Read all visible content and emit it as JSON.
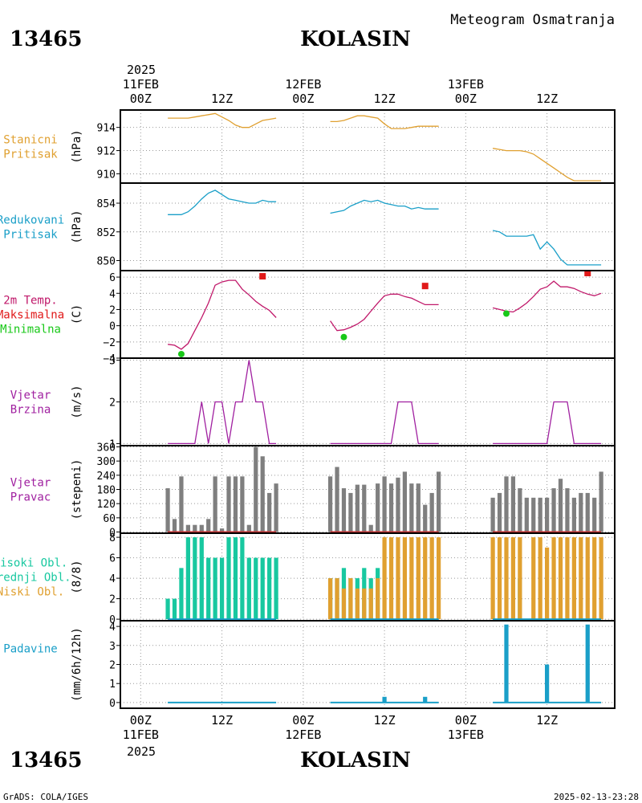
{
  "header": {
    "station_id": "13465",
    "station_name": "KOLASIN",
    "product": "Meteogram Osmatranja",
    "year": "2025"
  },
  "footer": {
    "credit": "GrADS: COLA/IGES",
    "timestamp": "2025-02-13-23:28"
  },
  "time_axis": {
    "top_labels": [
      {
        "t": 0,
        "hour": "00Z",
        "date": "11FEB"
      },
      {
        "t": 12,
        "hour": "12Z",
        "date": ""
      },
      {
        "t": 24,
        "hour": "00Z",
        "date": "12FEB"
      },
      {
        "t": 36,
        "hour": "12Z",
        "date": ""
      },
      {
        "t": 48,
        "hour": "00Z",
        "date": "13FEB"
      },
      {
        "t": 60,
        "hour": "12Z",
        "date": ""
      }
    ],
    "range_hours": [
      -3,
      70
    ]
  },
  "chart_data": [
    {
      "id": "stanicni",
      "type": "line",
      "label_lines": [
        {
          "text": "Stanicni",
          "color": "#e0a030"
        },
        {
          "text": "Pritisak",
          "color": "#e0a030"
        }
      ],
      "unit": "(hPa)",
      "ylim": [
        909.2,
        915.5
      ],
      "yticks": [
        910,
        912,
        914
      ],
      "color": "#e0a030",
      "segments": [
        {
          "x": [
            4,
            6,
            7,
            8,
            9,
            10,
            11,
            12,
            13,
            14,
            15,
            16,
            17,
            18,
            19,
            20
          ],
          "y": [
            914.8,
            914.8,
            914.8,
            914.9,
            915.0,
            915.1,
            915.2,
            914.9,
            914.6,
            914.2,
            914.0,
            914.0,
            914.3,
            914.6,
            914.7,
            914.8
          ]
        },
        {
          "x": [
            28,
            29,
            30,
            31,
            32,
            33,
            34,
            35,
            36,
            37,
            38,
            39,
            40,
            41,
            42,
            43,
            44
          ],
          "y": [
            914.5,
            914.5,
            914.6,
            914.8,
            915.0,
            915.0,
            914.9,
            914.8,
            914.3,
            913.9,
            913.9,
            913.9,
            914.0,
            914.1,
            914.1,
            914.1,
            914.1
          ]
        },
        {
          "x": [
            52,
            53,
            54,
            55,
            56,
            57,
            58,
            59,
            60,
            61,
            62,
            63,
            64,
            65,
            66,
            67,
            68
          ],
          "y": [
            912.2,
            912.1,
            912.0,
            912.0,
            912.0,
            911.9,
            911.7,
            911.3,
            910.9,
            910.5,
            910.1,
            909.7,
            909.4,
            909.4,
            909.4,
            909.4,
            909.4
          ]
        }
      ]
    },
    {
      "id": "redukovani",
      "type": "line",
      "label_lines": [
        {
          "text": "Redukovani",
          "color": "#1a9fc8"
        },
        {
          "text": "Pritisak",
          "color": "#1a9fc8"
        }
      ],
      "unit": "(hPa)",
      "ylim": [
        849.3,
        855.4
      ],
      "yticks": [
        850,
        852,
        854
      ],
      "color": "#1a9fc8",
      "segments": [
        {
          "x": [
            4,
            5,
            6,
            7,
            8,
            9,
            10,
            11,
            12,
            13,
            14,
            15,
            16,
            17,
            18,
            19,
            20
          ],
          "y": [
            853.2,
            853.2,
            853.2,
            853.4,
            853.8,
            854.3,
            854.7,
            854.9,
            854.6,
            854.3,
            854.2,
            854.1,
            854.0,
            854.0,
            854.2,
            854.1,
            854.1
          ]
        },
        {
          "x": [
            28,
            29,
            30,
            31,
            32,
            33,
            34,
            35,
            36,
            37,
            38,
            39,
            40,
            41,
            42,
            43,
            44
          ],
          "y": [
            853.3,
            853.4,
            853.5,
            853.8,
            854.0,
            854.2,
            854.1,
            854.2,
            854.0,
            853.9,
            853.8,
            853.8,
            853.6,
            853.7,
            853.6,
            853.6,
            853.6
          ]
        },
        {
          "x": [
            52,
            53,
            54,
            55,
            56,
            57,
            58,
            59,
            60,
            61,
            62,
            63,
            64,
            65,
            66,
            67,
            68
          ],
          "y": [
            852.1,
            852.0,
            851.7,
            851.7,
            851.7,
            851.7,
            851.8,
            850.8,
            851.3,
            850.8,
            850.1,
            849.7,
            849.7,
            849.7,
            849.7,
            849.7,
            849.7
          ]
        }
      ]
    },
    {
      "id": "temp",
      "type": "line",
      "label_lines": [
        {
          "text": "2m Temp.",
          "color": "#c0186a"
        },
        {
          "text": "Maksimalna",
          "color": "#e01818"
        },
        {
          "text": "Minimalna",
          "color": "#18c818"
        }
      ],
      "unit": "(C)",
      "ylim": [
        -4,
        6.8
      ],
      "yticks": [
        -4,
        -2,
        0,
        2,
        4,
        6
      ],
      "yticklabels": [
        "−4",
        "−2",
        "0",
        "2",
        "4",
        "6"
      ],
      "color": "#c0186a",
      "segments": [
        {
          "x": [
            4,
            5,
            6,
            7,
            8,
            9,
            10,
            11,
            12,
            13,
            14,
            15,
            16,
            17,
            18,
            19,
            20
          ],
          "y": [
            -2.3,
            -2.4,
            -2.9,
            -2.2,
            -0.6,
            1.0,
            2.8,
            5.0,
            5.4,
            5.6,
            5.6,
            4.5,
            3.8,
            3.0,
            2.4,
            1.9,
            1.0
          ]
        },
        {
          "x": [
            28,
            29,
            30,
            31,
            32,
            33,
            34,
            35,
            36,
            37,
            38,
            39,
            40,
            41,
            42,
            43,
            44
          ],
          "y": [
            0.6,
            -0.6,
            -0.5,
            -0.2,
            0.2,
            0.8,
            1.8,
            2.8,
            3.7,
            3.9,
            3.9,
            3.6,
            3.4,
            3.0,
            2.6,
            2.6,
            2.6
          ]
        },
        {
          "x": [
            52,
            53,
            54,
            55,
            56,
            57,
            58,
            59,
            60,
            61,
            62,
            63,
            64,
            65,
            66,
            67,
            68
          ],
          "y": [
            2.2,
            2.0,
            1.8,
            1.7,
            2.2,
            2.8,
            3.6,
            4.5,
            4.8,
            5.5,
            4.8,
            4.8,
            4.6,
            4.2,
            3.9,
            3.7,
            4.0
          ]
        }
      ],
      "max_points": {
        "color": "#e01818",
        "x": [
          18,
          42,
          66
        ],
        "y": [
          6.1,
          4.9,
          6.5
        ]
      },
      "min_points": {
        "color": "#18c818",
        "x": [
          6,
          30,
          54
        ],
        "y": [
          -3.5,
          -1.4,
          1.5
        ]
      }
    },
    {
      "id": "brzina",
      "type": "line",
      "label_lines": [
        {
          "text": "Vjetar",
          "color": "#a020a0"
        },
        {
          "text": "Brzina",
          "color": "#a020a0"
        }
      ],
      "unit": "(m/s)",
      "ylim": [
        0.95,
        3.05
      ],
      "yticks": [
        1,
        2,
        3
      ],
      "color": "#a020a0",
      "segments": [
        {
          "x": [
            4,
            5,
            6,
            7,
            8,
            9,
            10,
            11,
            12,
            13,
            14,
            15,
            16,
            17,
            18,
            19,
            20
          ],
          "y": [
            1,
            1,
            1,
            1,
            1,
            2,
            1,
            2,
            2,
            1,
            2,
            2,
            3,
            2,
            2,
            1,
            1
          ]
        },
        {
          "x": [
            28,
            29,
            30,
            31,
            32,
            33,
            34,
            35,
            36,
            37,
            38,
            39,
            40,
            41,
            42,
            43,
            44
          ],
          "y": [
            1,
            1,
            1,
            1,
            1,
            1,
            1,
            1,
            1,
            1,
            2,
            2,
            2,
            1,
            1,
            1,
            1
          ]
        },
        {
          "x": [
            52,
            53,
            54,
            55,
            56,
            57,
            58,
            59,
            60,
            61,
            62,
            63,
            64,
            65,
            66,
            67,
            68
          ],
          "y": [
            1,
            1,
            1,
            1,
            1,
            1,
            1,
            1,
            1,
            2,
            2,
            2,
            1,
            1,
            1,
            1,
            1
          ]
        }
      ]
    },
    {
      "id": "pravac",
      "type": "bar",
      "label_lines": [
        {
          "text": "Vjetar",
          "color": "#a020a0"
        },
        {
          "text": "Pravac",
          "color": "#a020a0"
        }
      ],
      "unit": "(stepeni)",
      "ylim": [
        -5,
        365
      ],
      "yticks": [
        0,
        60,
        120,
        180,
        240,
        300,
        360
      ],
      "color": "#7f7f7f",
      "baseline_color": "#c03030",
      "x": [
        4,
        5,
        6,
        7,
        8,
        9,
        10,
        11,
        12,
        13,
        14,
        15,
        16,
        17,
        18,
        19,
        20,
        28,
        29,
        30,
        31,
        32,
        33,
        34,
        35,
        36,
        37,
        38,
        39,
        40,
        41,
        42,
        43,
        44,
        52,
        53,
        54,
        55,
        56,
        57,
        58,
        59,
        60,
        61,
        62,
        63,
        64,
        65,
        66,
        67,
        68
      ],
      "values": [
        185,
        55,
        235,
        30,
        30,
        30,
        55,
        235,
        15,
        235,
        235,
        235,
        30,
        360,
        320,
        165,
        205,
        235,
        275,
        185,
        165,
        200,
        200,
        30,
        205,
        235,
        205,
        230,
        255,
        205,
        205,
        115,
        165,
        255,
        145,
        165,
        235,
        235,
        185,
        145,
        145,
        145,
        145,
        185,
        225,
        185,
        145,
        165,
        165,
        145,
        255
      ]
    },
    {
      "id": "oblaci",
      "type": "bar",
      "label_lines": [
        {
          "text": "Visoki Obl.",
          "color": "#18c8a0"
        },
        {
          "text": "Srednji Obl.",
          "color": "#18c8a0"
        },
        {
          "text": "Niski Obl.",
          "color": "#e0a030"
        }
      ],
      "unit": "(8/8)",
      "ylim": [
        -0.15,
        8.4
      ],
      "yticks": [
        0,
        2,
        4,
        6,
        8
      ],
      "x": [
        4,
        5,
        6,
        7,
        8,
        9,
        10,
        11,
        12,
        13,
        14,
        15,
        16,
        17,
        18,
        19,
        20,
        28,
        29,
        30,
        31,
        32,
        33,
        34,
        35,
        36,
        37,
        38,
        39,
        40,
        41,
        42,
        43,
        44,
        52,
        53,
        54,
        55,
        56,
        57,
        58,
        59,
        60,
        61,
        62,
        63,
        64,
        65,
        66,
        67,
        68
      ],
      "series": [
        {
          "name": "Visoki Obl.",
          "color": "#18c8a0",
          "values": [
            2,
            2,
            5,
            8,
            8,
            8,
            6,
            6,
            6,
            8,
            8,
            8,
            6,
            6,
            6,
            6,
            6,
            4,
            4,
            5,
            4,
            4,
            5,
            4,
            5,
            0,
            0,
            0,
            0,
            0,
            0,
            0,
            0,
            0,
            0,
            0,
            0,
            0,
            4,
            0,
            0,
            0,
            0,
            0,
            0,
            0,
            0,
            0,
            0,
            0,
            0
          ]
        },
        {
          "name": "Srednji Obl.",
          "color": "#18c8a0",
          "values": [
            0,
            0,
            0,
            0,
            0,
            0,
            0,
            0,
            0,
            0,
            0,
            0,
            0,
            0,
            0,
            0,
            0,
            0,
            0,
            0,
            0,
            0,
            0,
            0,
            0,
            0,
            0,
            0,
            0,
            0,
            0,
            0,
            0,
            0,
            0,
            0,
            0,
            0,
            0,
            0,
            0,
            0,
            0,
            0,
            0,
            0,
            0,
            0,
            0,
            0,
            0
          ]
        },
        {
          "name": "Niski Obl.",
          "color": "#e0a030",
          "values": [
            0,
            0,
            0,
            0,
            0,
            0,
            0,
            0,
            0,
            0,
            0,
            0,
            0,
            0,
            0,
            0,
            0,
            4,
            4,
            3,
            4,
            3,
            3,
            3,
            4,
            8,
            8,
            8,
            8,
            8,
            8,
            8,
            8,
            8,
            8,
            8,
            8,
            8,
            8,
            0,
            8,
            8,
            7,
            8,
            8,
            8,
            8,
            8,
            8,
            8,
            8
          ]
        }
      ]
    },
    {
      "id": "padavine",
      "type": "bar",
      "label_lines": [
        {
          "text": "Padavine",
          "color": "#1a9fc8"
        }
      ],
      "unit": "(mm/6h/12h)",
      "ylim": [
        -0.3,
        4.3
      ],
      "yticks": [
        0,
        1,
        2,
        3,
        4
      ],
      "color": "#1a9fc8",
      "x": [
        4,
        5,
        6,
        7,
        8,
        9,
        10,
        11,
        12,
        13,
        14,
        15,
        16,
        17,
        18,
        19,
        20,
        28,
        29,
        30,
        31,
        32,
        33,
        34,
        35,
        36,
        37,
        38,
        39,
        40,
        41,
        42,
        43,
        44,
        52,
        53,
        54,
        55,
        56,
        57,
        58,
        59,
        60,
        61,
        62,
        63,
        64,
        65,
        66,
        67,
        68
      ],
      "values": [
        0,
        0,
        0,
        0,
        0,
        0,
        0,
        0,
        0,
        0,
        0,
        0,
        0,
        0,
        0,
        0,
        0,
        0,
        0,
        0,
        0,
        0,
        0,
        0,
        0,
        0.3,
        0,
        0,
        0,
        0,
        0,
        0.3,
        0,
        0,
        0,
        0,
        4.1,
        0,
        0,
        0,
        0,
        0,
        2.0,
        0,
        0,
        0,
        0,
        0,
        4.1,
        0,
        0
      ]
    }
  ]
}
